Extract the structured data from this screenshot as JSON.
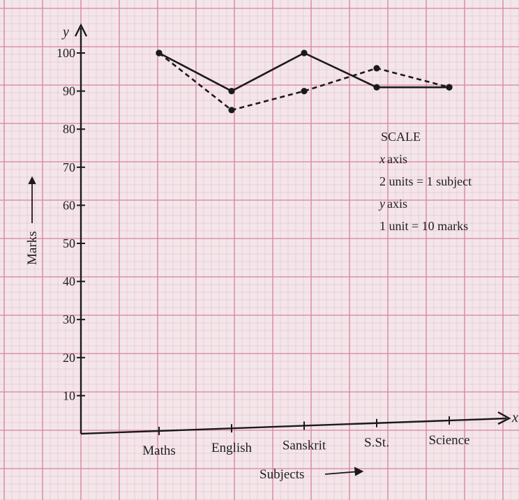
{
  "chart_data": {
    "type": "line",
    "categories": [
      "Maths",
      "English",
      "Sanskrit",
      "S.St.",
      "Science"
    ],
    "series": [
      {
        "style": "solid",
        "values": [
          100,
          90,
          100,
          91,
          91
        ]
      },
      {
        "style": "dashed",
        "values": [
          100,
          85,
          90,
          96,
          91
        ]
      }
    ],
    "title": "",
    "xlabel": "Subjects",
    "ylabel": "Marks",
    "x_axis_letter": "x",
    "y_axis_letter": "y",
    "ylim": [
      0,
      100
    ],
    "yticks": [
      10,
      20,
      30,
      40,
      50,
      60,
      70,
      80,
      90,
      100
    ],
    "grid": true,
    "grid_color": "#d98aa3",
    "line_color": "#1a1a1a",
    "paper_color": "#f3e6ea",
    "scale_note": {
      "heading": "SCALE",
      "x_head": "axis",
      "x_rule": "2 units = 1 subject",
      "y_head": "axis",
      "y_rule": "1 unit = 10 marks"
    }
  }
}
